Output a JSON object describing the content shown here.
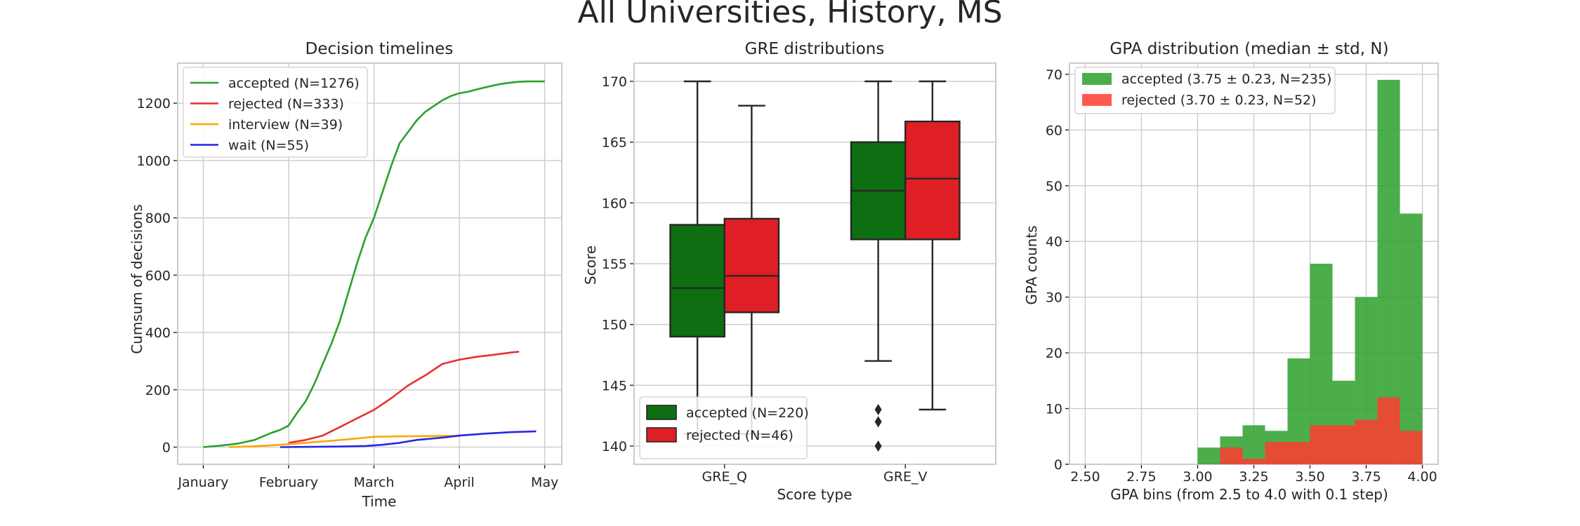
{
  "figure": {
    "suptitle": "All Universities, History, MS"
  },
  "charts": [
    {
      "type": "line",
      "title": "Decision timelines",
      "xlabel": "Time",
      "ylabel": "Cumsum of decisions",
      "xlim": [
        -0.3,
        4.2
      ],
      "ylim": [
        -60,
        1340
      ],
      "xticks": [
        0,
        1,
        2,
        3,
        4
      ],
      "xticklabels": [
        "January",
        "February",
        "March",
        "April",
        "May"
      ],
      "yticks": [
        0,
        200,
        400,
        600,
        800,
        1000,
        1200
      ],
      "grid": true,
      "legend": "upper-left",
      "series": [
        {
          "name": "accepted (N=1276)",
          "color": "#2ca02c",
          "x": [
            0,
            0.2,
            0.4,
            0.6,
            0.8,
            0.9,
            1.0,
            1.1,
            1.2,
            1.3,
            1.4,
            1.5,
            1.6,
            1.7,
            1.8,
            1.9,
            2.0,
            2.1,
            2.2,
            2.3,
            2.4,
            2.5,
            2.6,
            2.7,
            2.8,
            2.9,
            3.0,
            3.1,
            3.2,
            3.3,
            3.4,
            3.5,
            3.6,
            3.7,
            3.8,
            3.9,
            4.0
          ],
          "y": [
            0,
            5,
            12,
            25,
            50,
            60,
            75,
            120,
            160,
            220,
            290,
            360,
            440,
            540,
            640,
            730,
            800,
            890,
            980,
            1060,
            1100,
            1140,
            1170,
            1190,
            1210,
            1225,
            1235,
            1240,
            1248,
            1255,
            1262,
            1268,
            1272,
            1275,
            1276,
            1276,
            1276
          ]
        },
        {
          "name": "rejected (N=333)",
          "color": "#e8302f",
          "x": [
            1.0,
            1.2,
            1.4,
            1.6,
            1.8,
            2.0,
            2.2,
            2.4,
            2.6,
            2.8,
            3.0,
            3.2,
            3.4,
            3.6,
            3.7
          ],
          "y": [
            15,
            25,
            40,
            70,
            100,
            130,
            170,
            215,
            250,
            290,
            305,
            315,
            322,
            330,
            333
          ]
        },
        {
          "name": "interview (N=39)",
          "color": "#ffa500",
          "x": [
            0.3,
            0.6,
            0.9,
            1.2,
            1.5,
            1.8,
            2.0,
            2.4,
            2.8,
            3.0
          ],
          "y": [
            0,
            3,
            8,
            15,
            22,
            30,
            36,
            38,
            39,
            39
          ]
        },
        {
          "name": "wait (N=55)",
          "color": "#2727e6",
          "x": [
            0.9,
            1.3,
            1.6,
            1.9,
            2.1,
            2.3,
            2.5,
            2.8,
            3.0,
            3.3,
            3.6,
            3.9
          ],
          "y": [
            0,
            1,
            2,
            4,
            8,
            15,
            25,
            33,
            40,
            47,
            52,
            55
          ]
        }
      ]
    },
    {
      "type": "box",
      "title": "GRE distributions",
      "xlabel": "Score type",
      "ylabel": "Score",
      "categories": [
        "GRE_Q",
        "GRE_V"
      ],
      "ylim": [
        138.5,
        171.5
      ],
      "yticks": [
        140,
        145,
        150,
        155,
        160,
        165,
        170
      ],
      "grid": true,
      "legend": "lower-left",
      "series": [
        {
          "name": "accepted (N=220)",
          "color": "#0e6e12",
          "boxes": [
            {
              "whislo": 141,
              "q1": 149,
              "med": 153,
              "q3": 158.2,
              "whishi": 170,
              "fliers": []
            },
            {
              "whislo": 147,
              "q1": 157,
              "med": 161,
              "q3": 165,
              "whishi": 170,
              "fliers": [
                140,
                142,
                143
              ]
            }
          ]
        },
        {
          "name": "rejected (N=46)",
          "color": "#e01e25",
          "boxes": [
            {
              "whislo": 141,
              "q1": 151,
              "med": 154,
              "q3": 158.7,
              "whishi": 168,
              "fliers": []
            },
            {
              "whislo": 143,
              "q1": 157,
              "med": 162,
              "q3": 166.7,
              "whishi": 170,
              "fliers": []
            }
          ]
        }
      ]
    },
    {
      "type": "histogram",
      "title": "GPA distribution (median ± std, N)",
      "xlabel": "GPA bins (from 2.5 to 4.0 with 0.1 step)",
      "ylabel": "GPA counts",
      "xlim": [
        2.43,
        4.07
      ],
      "ylim": [
        0,
        72
      ],
      "xticks": [
        2.5,
        2.75,
        3.0,
        3.25,
        3.5,
        3.75,
        4.0
      ],
      "xticklabels": [
        "2.50",
        "2.75",
        "3.00",
        "3.25",
        "3.50",
        "3.75",
        "4.00"
      ],
      "yticks": [
        0,
        10,
        20,
        30,
        40,
        50,
        60,
        70
      ],
      "grid": true,
      "legend": "upper-left",
      "bin_edges": [
        2.5,
        2.6,
        2.7,
        2.8,
        2.9,
        3.0,
        3.1,
        3.2,
        3.3,
        3.4,
        3.5,
        3.6,
        3.7,
        3.8,
        3.9,
        4.0
      ],
      "series": [
        {
          "name": "accepted (3.75 ± 0.23, N=235)",
          "color": "#2ca02c",
          "counts": [
            0,
            0,
            0,
            0,
            0,
            3,
            5,
            7,
            6,
            19,
            36,
            15,
            30,
            69,
            45
          ]
        },
        {
          "name": "rejected (3.70 ± 0.23, N=52)",
          "color": "#ff3b30",
          "counts": [
            0,
            0,
            0,
            0,
            0,
            0,
            3,
            1,
            4,
            4,
            7,
            7,
            8,
            12,
            6
          ]
        }
      ]
    }
  ]
}
